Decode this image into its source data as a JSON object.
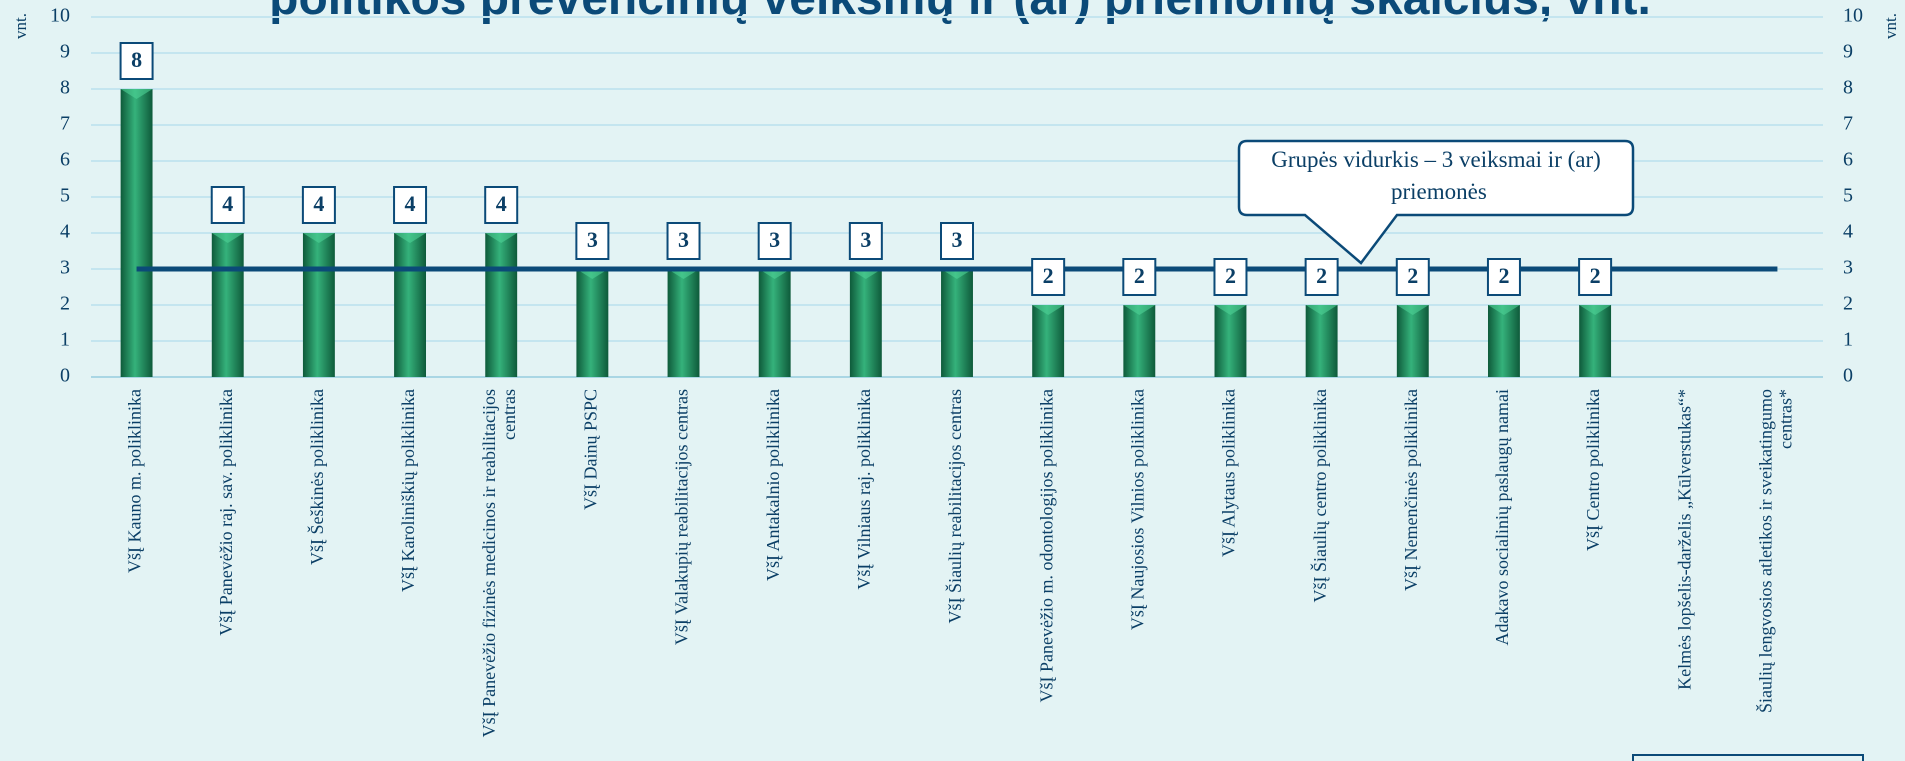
{
  "chart_data": {
    "type": "bar",
    "title": "politikos prevencinių veiksmų ir (ar) priemonių skaičius, vnt.",
    "y_label": "vnt.",
    "y2_label": "vnt.",
    "categories": [
      "VšĮ Kauno m. poliklinika",
      "VšĮ Panevėžio raj. sav. poliklinika",
      "VšĮ Šeškinės poliklinika",
      "VšĮ Karoliniškių poliklinika",
      "VšĮ Panevėžio fizinės medicinos ir reabilitacijos centras",
      "VšĮ Dainų PSPC",
      "VšĮ Valakupių reabilitacijos centras",
      "VšĮ Antakalnio poliklinika",
      "VšĮ Vilniaus raj. poliklinika",
      "VšĮ Šiaulių reabilitacijos centras",
      "VšĮ Panevėžio m. odontologijos poliklinika",
      "VšĮ Naujosios Vilnios poliklinika",
      "VšĮ Alytaus poliklinika",
      "VšĮ Šiaulių centro poliklinika",
      "VšĮ Nemenčinės poliklinika",
      "Adakavo socialinių paslaugų namai",
      "VšĮ Centro poliklinika",
      "Kelmės lopšelis-darželis „Kūlverstukas“*",
      "Šiaulių lengvosios atletikos ir sveikatingumo centras*"
    ],
    "values": [
      8,
      4,
      4,
      4,
      4,
      3,
      3,
      3,
      3,
      3,
      2,
      2,
      2,
      2,
      2,
      2,
      2,
      null,
      null
    ],
    "color": "#1f8c5c",
    "average": 3,
    "average_color": "#0b4a78",
    "annotation": "Grupės vidurkis – 3 veiksmai ir (ar) priemonės",
    "ylim": [
      0,
      10
    ],
    "yticks": [
      0,
      1,
      2,
      3,
      4,
      5,
      6,
      7,
      8,
      9,
      10
    ],
    "y2lim": [
      0,
      10
    ],
    "y2ticks": [
      0,
      1,
      2,
      3,
      4,
      5,
      6,
      7,
      8,
      9,
      10
    ],
    "grid": true
  }
}
